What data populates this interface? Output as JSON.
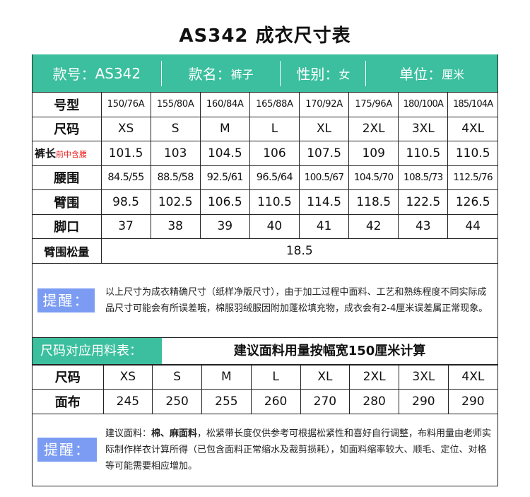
{
  "title": "AS342 成衣尺寸表",
  "header": {
    "style_no_label": "款号：",
    "style_no": "AS342",
    "name_label": "款名：",
    "name": "裤子",
    "gender_label": "性别：",
    "gender": "女",
    "unit_label": "单位：",
    "unit": "厘米"
  },
  "size_table": {
    "rows": [
      {
        "label": "号型",
        "note": "",
        "values": [
          "150/76A",
          "155/80A",
          "160/84A",
          "165/88A",
          "170/92A",
          "175/96A",
          "180/100A",
          "185/104A"
        ]
      },
      {
        "label": "尺码",
        "note": "",
        "values": [
          "XS",
          "S",
          "M",
          "L",
          "XL",
          "2XL",
          "3XL",
          "4XL"
        ]
      },
      {
        "label": "裤长",
        "note": "前中含腰",
        "values": [
          "101.5",
          "103",
          "104.5",
          "106",
          "107.5",
          "109",
          "110.5",
          "110.5"
        ]
      },
      {
        "label": "腰围",
        "note": "",
        "values": [
          "84.5/55",
          "88.5/58",
          "92.5/61",
          "96.5/64",
          "100.5/67",
          "104.5/70",
          "108.5/73",
          "112.5/76"
        ]
      },
      {
        "label": "臂围",
        "note": "",
        "values": [
          "98.5",
          "102.5",
          "106.5",
          "110.5",
          "114.5",
          "118.5",
          "122.5",
          "126.5"
        ]
      },
      {
        "label": "脚口",
        "note": "",
        "values": [
          "37",
          "38",
          "39",
          "40",
          "41",
          "42",
          "43",
          "44"
        ]
      }
    ],
    "ease_label": "臂围松量",
    "ease_value": "18.5"
  },
  "note1": {
    "tag": "提醒：",
    "text": "以上尺寸为成衣精确尺寸（纸样净版尺寸），由于加工过程中面料、工艺和熟练程度不同实际成品尺寸可能会有所误差哦，棉服羽绒服因附加蓬松填充物，成衣会有2-4厘米误差属正常现象。"
  },
  "fabric": {
    "section_label": "尺码对应用料表：",
    "section_title": "建议面料用量按幅宽150厘米计算",
    "rows": [
      {
        "label": "尺码",
        "values": [
          "XS",
          "S",
          "M",
          "L",
          "XL",
          "2XL",
          "3XL",
          "4XL"
        ]
      },
      {
        "label": "面布",
        "values": [
          "245",
          "250",
          "255",
          "260",
          "270",
          "280",
          "290",
          "290"
        ]
      }
    ]
  },
  "note2": {
    "tag": "提醒：",
    "text_prefix": "建议面料：",
    "text_bold": "棉、麻面料",
    "text": "，松紧带长度仅供参考可根据松紧性和喜好自行调整，布料用量由老师实际制作样衣计算所得（已包含面料正常缩水及裁剪损耗），如面料缩率较大、顺毛、定位、对格等可能需要相应增加。"
  },
  "colors": {
    "accent": "#3bbf9e",
    "tag": "#7b9cf2",
    "note_red": "#e22222"
  }
}
